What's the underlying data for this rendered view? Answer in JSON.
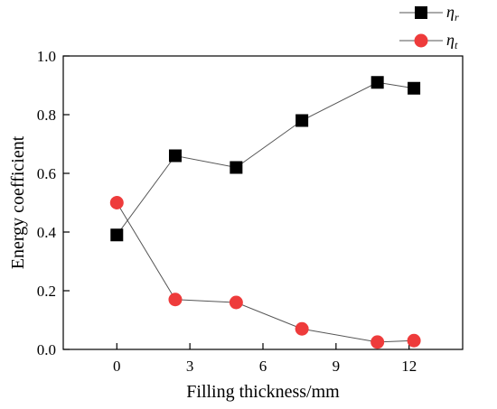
{
  "chart_data": {
    "type": "line",
    "xlabel": "Filling thickness/mm",
    "ylabel": "Energy coefficient",
    "xlim": [
      -2.2,
      14.2
    ],
    "ylim": [
      0.0,
      1.0
    ],
    "x_ticks": [
      0,
      3,
      6,
      9,
      12
    ],
    "y_ticks": [
      "0.0",
      "0.2",
      "0.4",
      "0.6",
      "0.8",
      "1.0"
    ],
    "grid": false,
    "legend_placement": "top-right",
    "series": [
      {
        "name_main": "η",
        "name_sub": "r",
        "marker": "square",
        "color": "#000000",
        "x": [
          0,
          2.4,
          4.9,
          7.6,
          10.7,
          12.2
        ],
        "y": [
          0.39,
          0.66,
          0.62,
          0.78,
          0.91,
          0.89
        ]
      },
      {
        "name_main": "η",
        "name_sub": "t",
        "marker": "circle",
        "color": "#ee3b3b",
        "x": [
          0,
          2.4,
          4.9,
          7.6,
          10.7,
          12.2
        ],
        "y": [
          0.5,
          0.17,
          0.16,
          0.07,
          0.025,
          0.03
        ]
      }
    ]
  }
}
